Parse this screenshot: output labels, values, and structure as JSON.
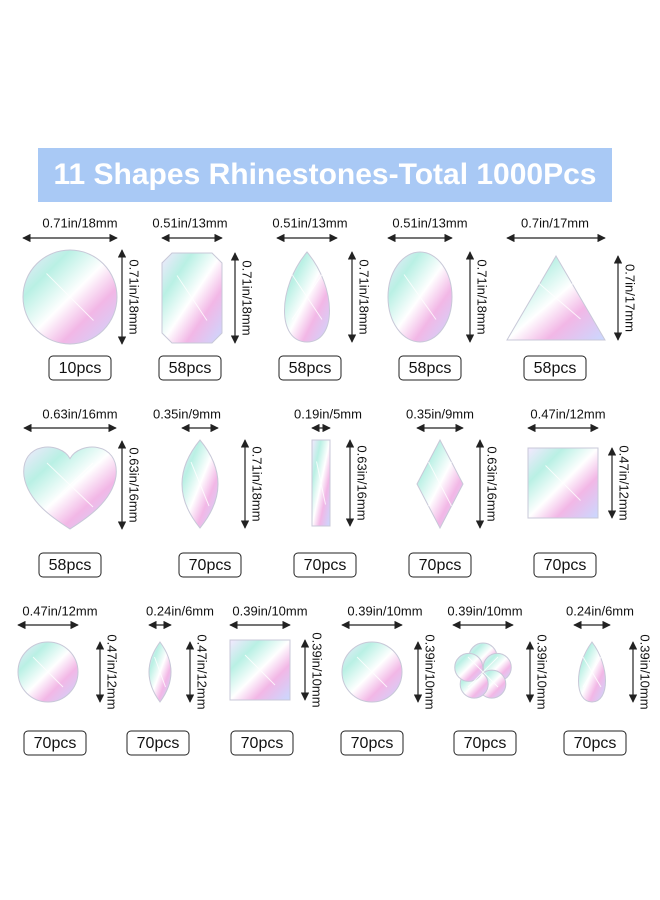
{
  "header": {
    "title": "11 Shapes Rhinestones-Total 1000Pcs"
  },
  "items": [
    {
      "width": "0.71in/18mm",
      "height": "0.71in/18mm",
      "count": "10pcs"
    },
    {
      "width": "0.51in/13mm",
      "height": "0.71in/18mm",
      "count": "58pcs"
    },
    {
      "width": "0.51in/13mm",
      "height": "0.71in/18mm",
      "count": "58pcs"
    },
    {
      "width": "0.51in/13mm",
      "height": "0.71in/18mm",
      "count": "58pcs"
    },
    {
      "width": "0.7in/17mm",
      "height": "0.7in/17mm",
      "count": "58pcs"
    },
    {
      "width": "0.63in/16mm",
      "height": "0.63in/16mm",
      "count": "58pcs"
    },
    {
      "width": "0.35in/9mm",
      "height": "0.71in/18mm",
      "count": "70pcs"
    },
    {
      "width": "0.19in/5mm",
      "height": "0.63in/16mm",
      "count": "70pcs"
    },
    {
      "width": "0.35in/9mm",
      "height": "0.63in/16mm",
      "count": "70pcs"
    },
    {
      "width": "0.47in/12mm",
      "height": "0.47in/12mm",
      "count": "70pcs"
    },
    {
      "width": "0.47in/12mm",
      "height": "0.47in/12mm",
      "count": "70pcs"
    },
    {
      "width": "0.24in/6mm",
      "height": "0.47in/12mm",
      "count": "70pcs"
    },
    {
      "width": "0.39in/10mm",
      "height": "0.39in/10mm",
      "count": "70pcs"
    },
    {
      "width": "0.39in/10mm",
      "height": "0.39in/10mm",
      "count": "70pcs"
    },
    {
      "width": "0.39in/10mm",
      "height": "0.39in/10mm",
      "count": "70pcs"
    },
    {
      "width": "0.24in/6mm",
      "height": "0.39in/10mm",
      "count": "70pcs"
    }
  ]
}
